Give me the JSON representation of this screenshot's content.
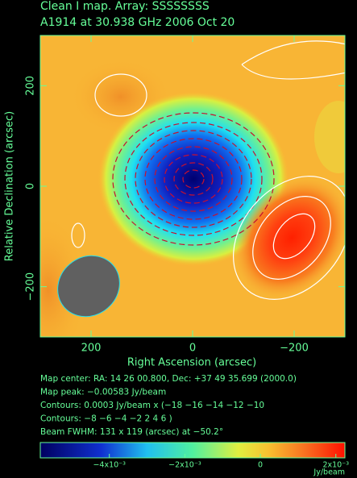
{
  "chart_data": {
    "type": "image",
    "title": "Clean I map.  Array:  SSSSSSSS",
    "subtitle": "A1914 at 30.938 GHz 2006 Oct 20",
    "x_label": "Right Ascension  (arcsec)",
    "y_label": "Relative Declination  (arcsec)",
    "xlim": [
      300,
      -300
    ],
    "xticks": [
      200,
      0,
      {
        "value": -200,
        "label": "−200"
      }
    ],
    "ylim": [
      -300,
      300
    ],
    "yticks": [
      {
        "value": -200,
        "label": "−200"
      },
      0,
      200
    ],
    "notes": [
      "Map center:  RA: 14 26 00.800,  Dec: +37 49 35.699 (2000.0)",
      "Map peak: −0.00583 Jy/beam",
      "Contours: 0.0003 Jy/beam x (−18 −16 −14 −12 −10",
      "Contours: −8 −6 −4 −2 2 4 6 )",
      "Beam FWHM: 131 x 119 (arcsec) at −50.2°"
    ],
    "colorbar": {
      "lim": [
        -0.00583,
        0.00224
      ],
      "ticks": [
        {
          "value": -0.004,
          "label": "−4x10⁻³"
        },
        {
          "value": -0.002,
          "label": "−2x10⁻³"
        },
        0,
        {
          "value": 0.002,
          "label": "2x10⁻³"
        }
      ],
      "unit": "Jy/beam"
    }
  }
}
